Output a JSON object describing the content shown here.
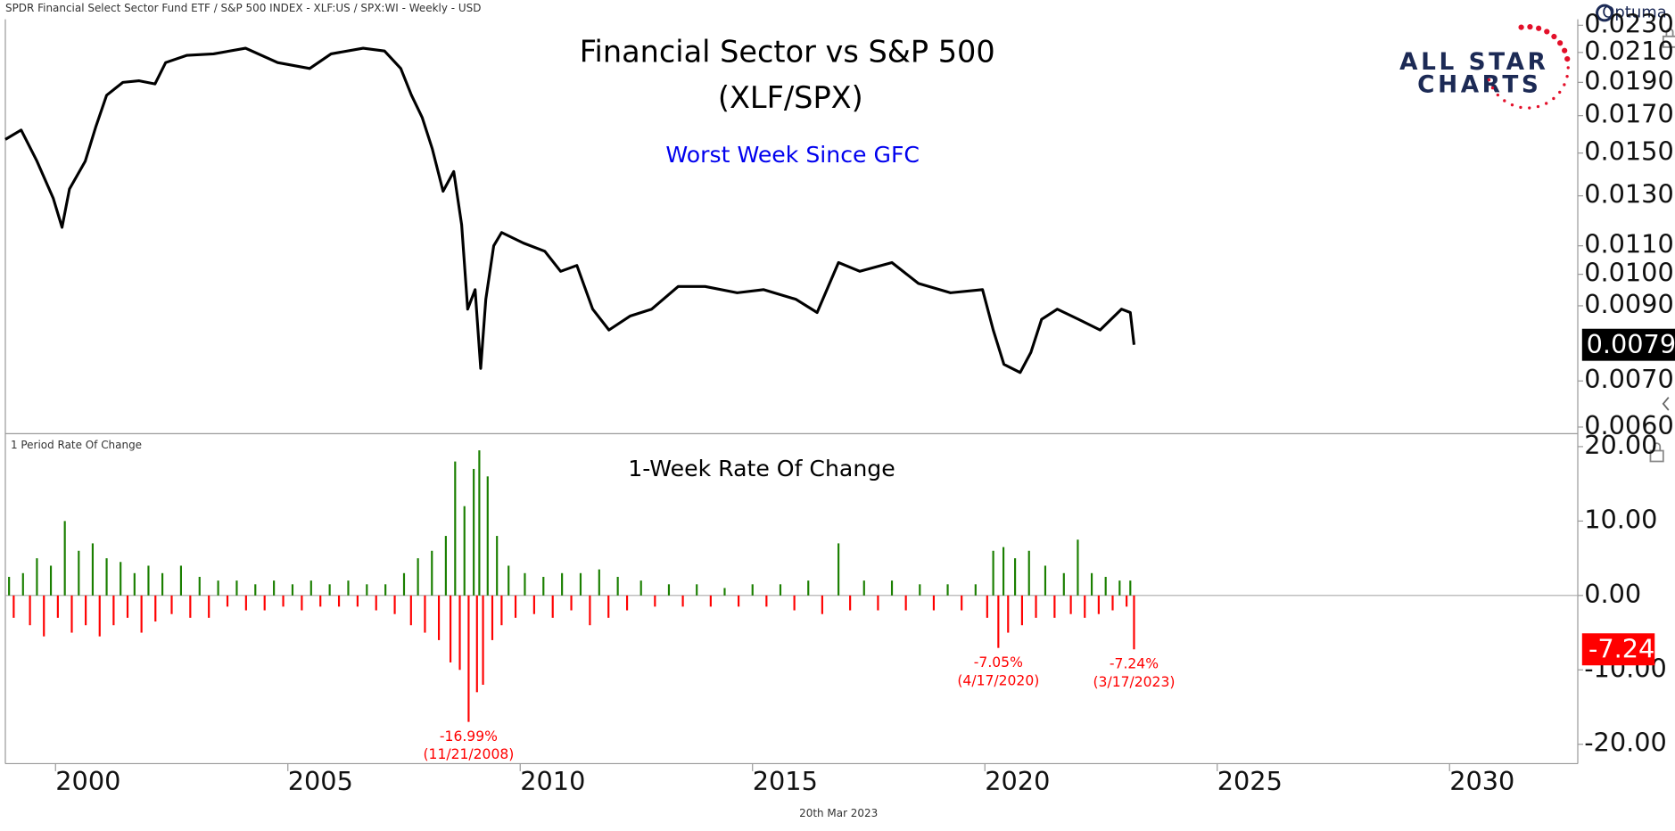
{
  "header": "SPDR Financial Select Sector Fund ETF / S&P 500 INDEX - XLF:US / SPX:WI - Weekly - USD",
  "footer_date": "20th Mar 2023",
  "brand": "Optuma",
  "logo": {
    "line1": "ALL STAR",
    "line2": "CHARTS"
  },
  "chart_data": [
    {
      "type": "line",
      "title": "Financial Sector vs S&P 500",
      "subtitle": "(XLF/SPX)",
      "annotation": "Worst Week Since GFC",
      "color": "#000000",
      "log_scale": true,
      "xlim": [
        1998.92,
        2032.76
      ],
      "ylim": [
        0.00589,
        0.02346
      ],
      "yticks": [
        {
          "value": 0.006,
          "label": "0.0060"
        },
        {
          "value": 0.007,
          "label": "0.0070"
        },
        {
          "value": 0.009,
          "label": "0.0090"
        },
        {
          "value": 0.01,
          "label": "0.0100"
        },
        {
          "value": 0.011,
          "label": "0.0110"
        },
        {
          "value": 0.013,
          "label": "0.0130"
        },
        {
          "value": 0.015,
          "label": "0.0150"
        },
        {
          "value": 0.017,
          "label": "0.0170"
        },
        {
          "value": 0.019,
          "label": "0.0190"
        },
        {
          "value": 0.021,
          "label": "0.0210"
        },
        {
          "value": 0.023,
          "label": "0.0230"
        }
      ],
      "x": [
        1998.92,
        1999.26,
        1999.6,
        1999.95,
        2000.14,
        2000.3,
        2000.64,
        2000.87,
        2001.1,
        2001.45,
        2001.8,
        2002.14,
        2002.37,
        2002.83,
        2003.4,
        2004.09,
        2004.78,
        2005.47,
        2005.93,
        2006.62,
        2007.08,
        2007.43,
        2007.66,
        2007.89,
        2008.11,
        2008.34,
        2008.57,
        2008.74,
        2008.87,
        2009.03,
        2009.15,
        2009.26,
        2009.43,
        2009.6,
        2010.07,
        2010.53,
        2010.87,
        2011.22,
        2011.56,
        2011.91,
        2012.37,
        2012.83,
        2013.4,
        2013.98,
        2014.67,
        2015.24,
        2015.93,
        2016.39,
        2016.85,
        2017.31,
        2018.0,
        2018.57,
        2019.26,
        2019.95,
        2020.18,
        2020.41,
        2020.76,
        2020.99,
        2021.22,
        2021.56,
        2022.02,
        2022.48,
        2022.94,
        2023.13,
        2023.21
      ],
      "values": [
        0.0157,
        0.0162,
        0.0146,
        0.0129,
        0.0117,
        0.0133,
        0.0146,
        0.0164,
        0.0182,
        0.019,
        0.0191,
        0.0189,
        0.0203,
        0.0208,
        0.0209,
        0.0213,
        0.0203,
        0.0199,
        0.0209,
        0.0213,
        0.0211,
        0.0199,
        0.0182,
        0.0169,
        0.0152,
        0.0132,
        0.0141,
        0.0118,
        0.0089,
        0.0095,
        0.0073,
        0.0092,
        0.011,
        0.0115,
        0.0111,
        0.0108,
        0.0101,
        0.0103,
        0.0089,
        0.0083,
        0.0087,
        0.0089,
        0.0096,
        0.0096,
        0.0094,
        0.0095,
        0.0092,
        0.0088,
        0.0104,
        0.0101,
        0.0104,
        0.0097,
        0.0094,
        0.0095,
        0.0083,
        0.0074,
        0.0072,
        0.0077,
        0.0086,
        0.0089,
        0.0086,
        0.0083,
        0.0089,
        0.0088,
        0.0079
      ]
    },
    {
      "type": "bar",
      "title": "1-Week Rate Of Change",
      "panel_label": "1 Period Rate Of Change",
      "positive_color": "#1a7f00",
      "negative_color": "#ff0000",
      "xlim": [
        1998.92,
        2032.76
      ],
      "xticks": [
        2000,
        2005,
        2010,
        2015,
        2020,
        2025,
        2030
      ],
      "ylim": [
        -22.6,
        21.6
      ],
      "yticks": [
        {
          "value": -20,
          "label": "-20.00"
        },
        {
          "value": -10,
          "label": "-10.00"
        },
        {
          "value": 0,
          "label": "0.00"
        },
        {
          "value": 10,
          "label": "10.00"
        },
        {
          "value": 20,
          "label": "20.00"
        }
      ],
      "zero_line": true,
      "x": [
        1999.0,
        1999.1,
        1999.3,
        1999.45,
        1999.6,
        1999.75,
        1999.9,
        2000.05,
        2000.2,
        2000.35,
        2000.5,
        2000.65,
        2000.8,
        2000.95,
        2001.1,
        2001.25,
        2001.4,
        2001.55,
        2001.7,
        2001.85,
        2002.0,
        2002.15,
        2002.3,
        2002.5,
        2002.7,
        2002.9,
        2003.1,
        2003.3,
        2003.5,
        2003.7,
        2003.9,
        2004.1,
        2004.3,
        2004.5,
        2004.7,
        2004.9,
        2005.1,
        2005.3,
        2005.5,
        2005.7,
        2005.9,
        2006.1,
        2006.3,
        2006.5,
        2006.7,
        2006.9,
        2007.1,
        2007.3,
        2007.5,
        2007.65,
        2007.8,
        2007.95,
        2008.1,
        2008.25,
        2008.4,
        2008.5,
        2008.6,
        2008.7,
        2008.8,
        2008.89,
        2009.0,
        2009.07,
        2009.12,
        2009.2,
        2009.3,
        2009.4,
        2009.5,
        2009.6,
        2009.75,
        2009.9,
        2010.1,
        2010.3,
        2010.5,
        2010.7,
        2010.9,
        2011.1,
        2011.3,
        2011.5,
        2011.7,
        2011.9,
        2012.1,
        2012.3,
        2012.6,
        2012.9,
        2013.2,
        2013.5,
        2013.8,
        2014.1,
        2014.4,
        2014.7,
        2015.0,
        2015.3,
        2015.6,
        2015.9,
        2016.2,
        2016.5,
        2016.85,
        2017.1,
        2017.4,
        2017.7,
        2018.0,
        2018.3,
        2018.6,
        2018.9,
        2019.2,
        2019.5,
        2019.8,
        2020.05,
        2020.18,
        2020.29,
        2020.4,
        2020.5,
        2020.65,
        2020.8,
        2020.95,
        2021.1,
        2021.3,
        2021.5,
        2021.7,
        2021.85,
        2022.0,
        2022.15,
        2022.3,
        2022.45,
        2022.6,
        2022.75,
        2022.9,
        2023.05,
        2023.13,
        2023.21
      ],
      "values": [
        2.5,
        -3,
        3,
        -4,
        5,
        -5.5,
        4,
        -3,
        10,
        -5,
        6,
        -4,
        7,
        -5.5,
        5,
        -4,
        4.5,
        -3,
        3,
        -5,
        4,
        -3.5,
        3,
        -2.5,
        4,
        -3,
        2.5,
        -3,
        2,
        -1.5,
        2,
        -2,
        1.5,
        -2,
        2,
        -1.5,
        1.5,
        -2,
        2,
        -1.5,
        1.5,
        -1.5,
        2,
        -1.5,
        1.5,
        -2,
        1.5,
        -2.5,
        3,
        -4,
        5,
        -5,
        6,
        -6,
        8,
        -9,
        18,
        -10,
        12,
        -16.99,
        17,
        -13,
        19.5,
        -12,
        16,
        -6,
        8,
        -4,
        4,
        -3,
        3,
        -2.5,
        2.5,
        -3,
        3,
        -2,
        3,
        -4,
        3.5,
        -3,
        2.5,
        -2,
        2,
        -1.5,
        1.5,
        -1.5,
        1.5,
        -1.5,
        1,
        -1.5,
        1.5,
        -1.5,
        1.5,
        -2,
        2,
        -2.5,
        7,
        -2,
        2,
        -2,
        2,
        -2,
        1.5,
        -2,
        1.5,
        -2,
        1.5,
        -3,
        6,
        -7.05,
        6.5,
        -5,
        5,
        -4,
        6,
        -3,
        4,
        -3,
        3,
        -2.5,
        7.5,
        -3,
        3,
        -2.5,
        2.5,
        -2,
        2,
        -1.5,
        2,
        -7.24
      ],
      "annotations": [
        {
          "x": 2008.89,
          "value": -16.99,
          "label": "-16.99%",
          "date": "(11/21/2008)"
        },
        {
          "x": 2020.29,
          "value": -7.05,
          "label": "-7.05%",
          "date": "(4/17/2020)"
        },
        {
          "x": 2023.21,
          "value": -7.24,
          "label": "-7.24%",
          "date": "(3/17/2023)"
        }
      ]
    }
  ]
}
